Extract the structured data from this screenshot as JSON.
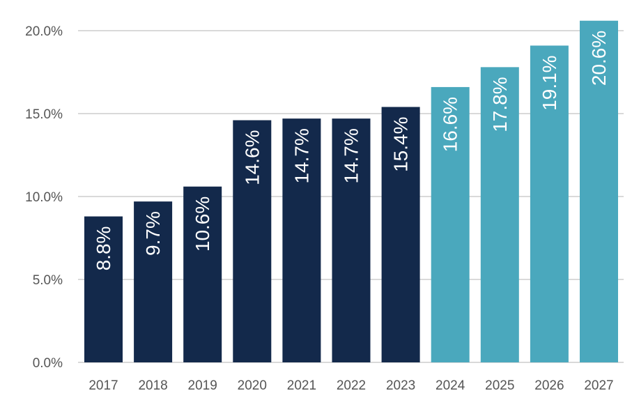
{
  "chart_data": {
    "type": "bar",
    "categories": [
      "2017",
      "2018",
      "2019",
      "2020",
      "2021",
      "2022",
      "2023",
      "2024",
      "2025",
      "2026",
      "2027"
    ],
    "values": [
      8.8,
      9.7,
      10.6,
      14.6,
      14.7,
      14.7,
      15.4,
      16.6,
      17.8,
      19.1,
      20.6
    ],
    "labels": [
      "8.8%",
      "9.7%",
      "10.6%",
      "14.6%",
      "14.7%",
      "14.7%",
      "15.4%",
      "16.6%",
      "17.8%",
      "19.1%",
      "20.6%"
    ],
    "yticks": [
      0,
      5,
      10,
      15,
      20
    ],
    "ytick_labels": [
      "0.0%",
      "5.0%",
      "10.0%",
      "15.0%",
      "20.0%"
    ],
    "ylim": [
      0,
      20
    ],
    "grid": true,
    "title": "",
    "xlabel": "",
    "ylabel": "",
    "colors": {
      "actual": "#13294b",
      "forecast": "#4aa8bd",
      "grid": "#d9d9d9"
    },
    "series_color_by_index": [
      "actual",
      "actual",
      "actual",
      "actual",
      "actual",
      "actual",
      "actual",
      "forecast",
      "forecast",
      "forecast",
      "forecast"
    ]
  }
}
